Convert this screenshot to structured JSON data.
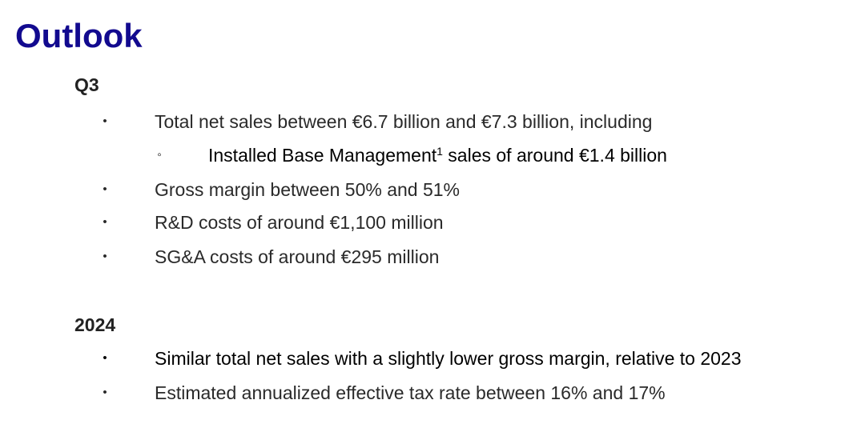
{
  "title": "Outlook",
  "sections": [
    {
      "heading": "Q3",
      "items": [
        {
          "text": "Total net sales between €6.7 billion and €7.3 billion, including",
          "bullet": "•"
        },
        {
          "text_before": "Installed Base Management",
          "footnote": "1",
          "text_after": " sales of around €1.4 billion",
          "bullet": "◦"
        },
        {
          "text": "Gross margin between 50% and 51%",
          "bullet": "•"
        },
        {
          "text": "R&D costs of around €1,100 million",
          "bullet": "•"
        },
        {
          "text": "SG&A costs of around €295 million",
          "bullet": "•"
        }
      ]
    },
    {
      "heading": "2024",
      "items": [
        {
          "text": "Similar total net sales with a slightly lower gross margin, relative to 2023",
          "bullet": "•"
        },
        {
          "text": "Estimated annualized effective tax rate between 16% and 17%",
          "bullet": "•"
        }
      ]
    }
  ],
  "colors": {
    "title": "#120a8f",
    "text": "#2a2a2a",
    "background": "#ffffff"
  }
}
